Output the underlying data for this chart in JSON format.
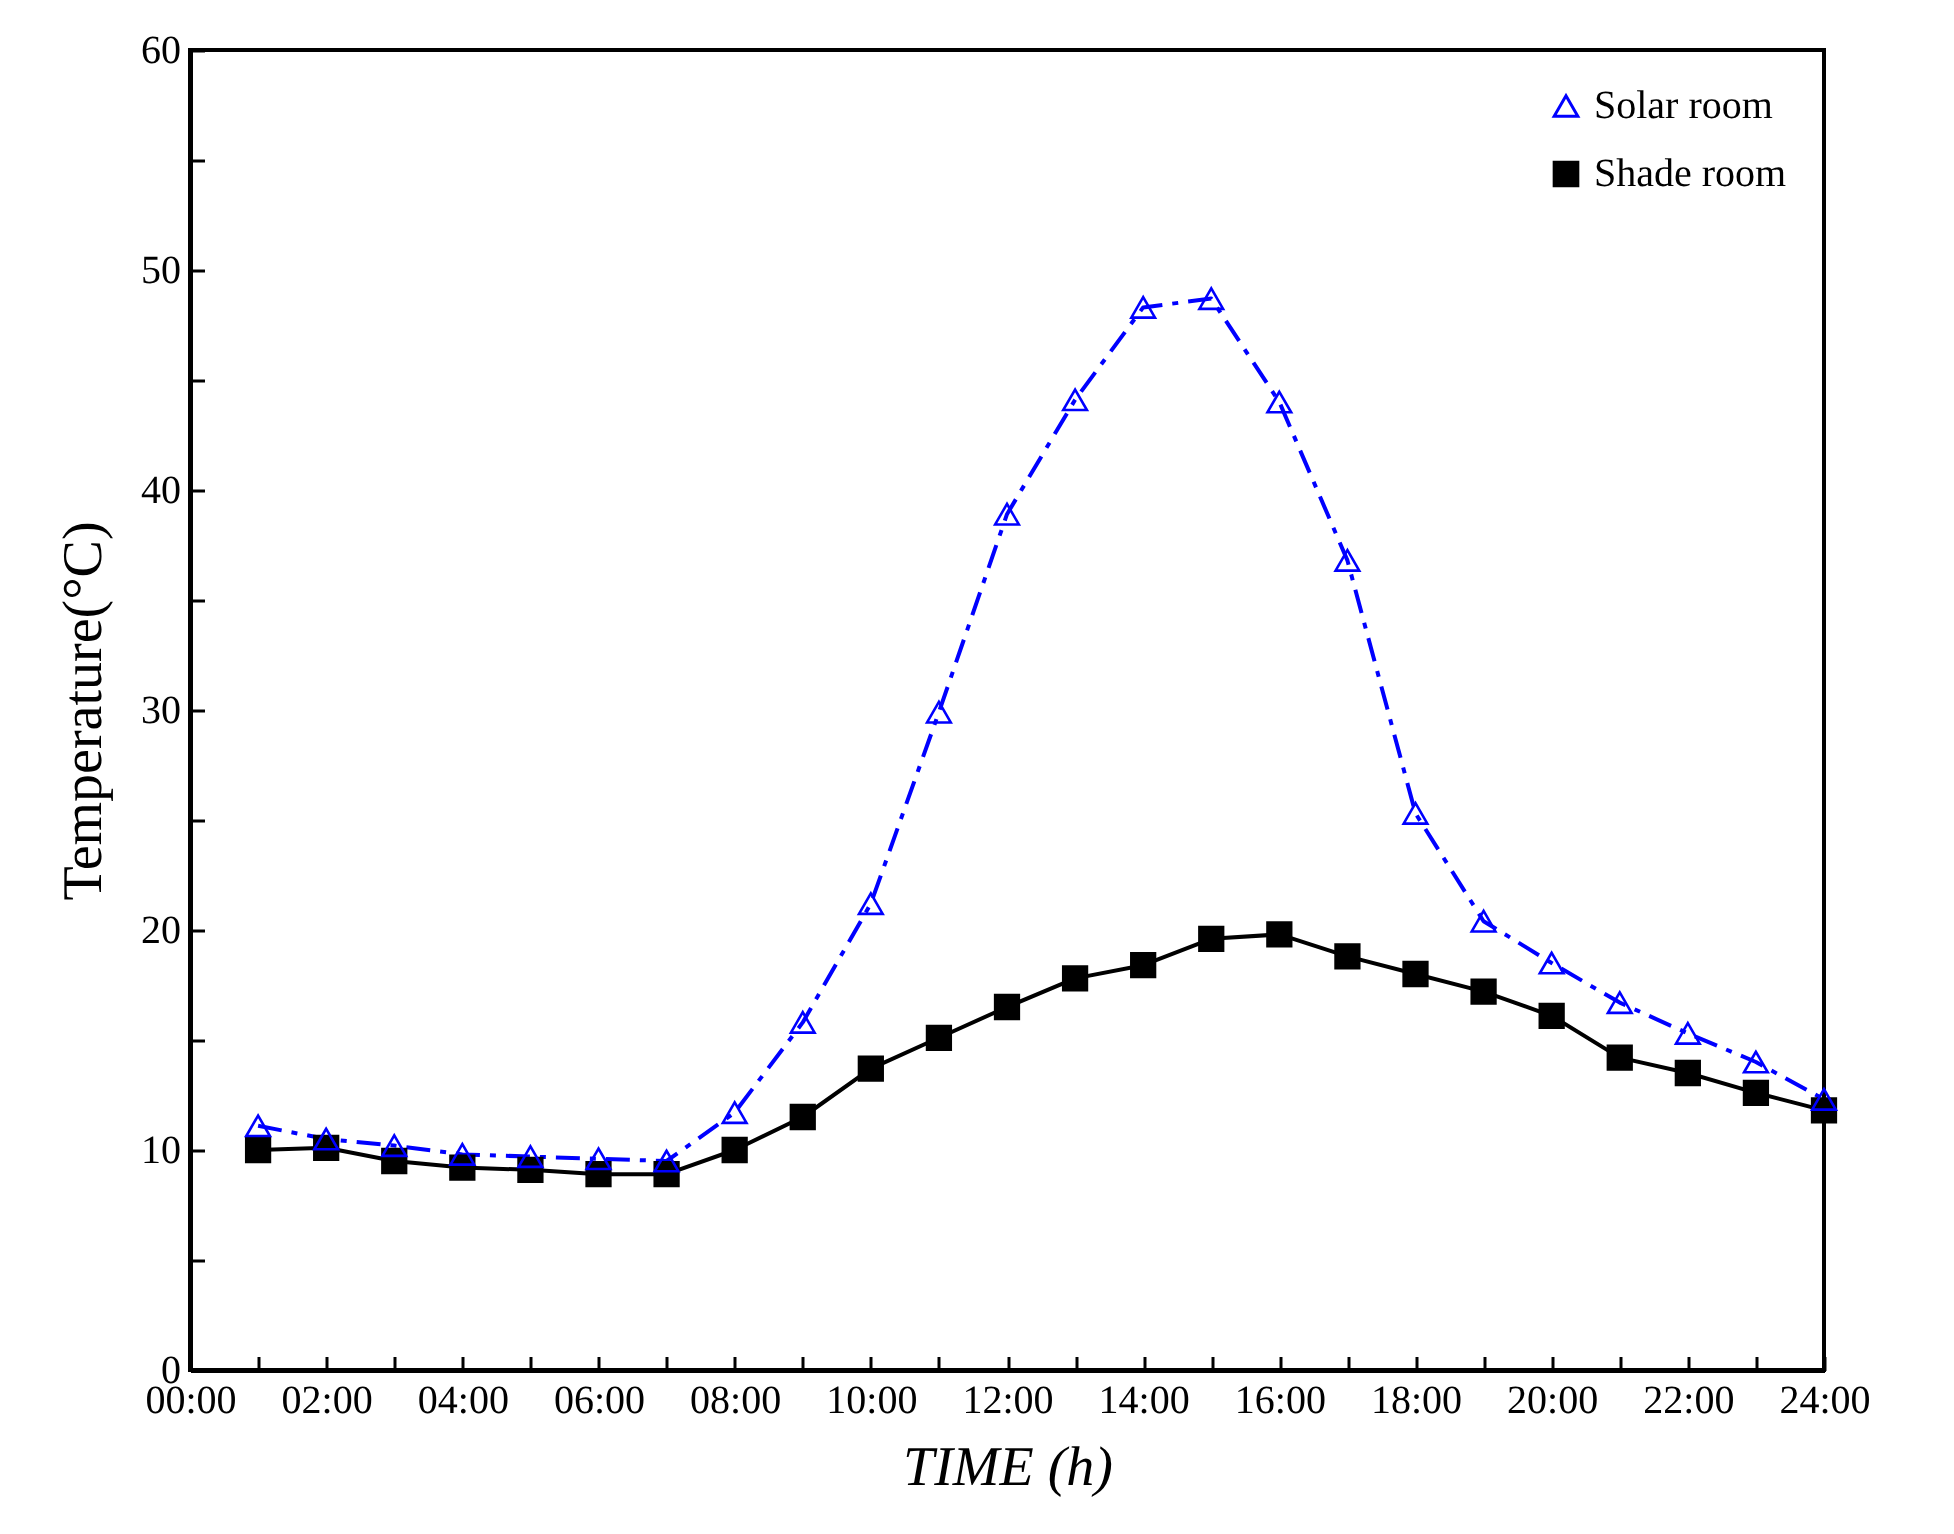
{
  "chart_data": {
    "type": "line",
    "xlabel": "TIME (h)",
    "ylabel": "Temperature(°C)",
    "x": [
      1,
      2,
      3,
      4,
      5,
      6,
      7,
      8,
      9,
      10,
      11,
      12,
      13,
      14,
      15,
      16,
      17,
      18,
      19,
      20,
      21,
      22,
      23,
      24
    ],
    "series": [
      {
        "name": "Solar room",
        "color": "#0000ff",
        "marker": "triangle",
        "line_style": "dashed",
        "values": [
          11.1,
          10.5,
          10.2,
          9.8,
          9.7,
          9.6,
          9.5,
          11.7,
          15.8,
          21.2,
          29.9,
          38.9,
          44.1,
          48.3,
          48.7,
          44.0,
          36.8,
          25.3,
          20.4,
          18.5,
          16.7,
          15.3,
          14.0,
          12.3
        ]
      },
      {
        "name": "Shade room",
        "color": "#000000",
        "marker": "square",
        "line_style": "solid",
        "values": [
          10.0,
          10.1,
          9.5,
          9.2,
          9.1,
          8.9,
          8.9,
          10.0,
          11.5,
          13.7,
          15.1,
          16.5,
          17.8,
          18.4,
          19.6,
          19.8,
          18.8,
          18.0,
          17.2,
          16.1,
          14.2,
          13.5,
          12.6,
          11.8
        ]
      }
    ],
    "xlim": [
      0,
      24
    ],
    "xticks": [
      {
        "value": 0,
        "label": "00:00"
      },
      {
        "value": 1,
        "label": null
      },
      {
        "value": 2,
        "label": "02:00"
      },
      {
        "value": 3,
        "label": null
      },
      {
        "value": 4,
        "label": "04:00"
      },
      {
        "value": 5,
        "label": null
      },
      {
        "value": 6,
        "label": "06:00"
      },
      {
        "value": 7,
        "label": null
      },
      {
        "value": 8,
        "label": "08:00"
      },
      {
        "value": 9,
        "label": null
      },
      {
        "value": 10,
        "label": "10:00"
      },
      {
        "value": 11,
        "label": null
      },
      {
        "value": 12,
        "label": "12:00"
      },
      {
        "value": 13,
        "label": null
      },
      {
        "value": 14,
        "label": "14:00"
      },
      {
        "value": 15,
        "label": null
      },
      {
        "value": 16,
        "label": "16:00"
      },
      {
        "value": 17,
        "label": null
      },
      {
        "value": 18,
        "label": "18:00"
      },
      {
        "value": 19,
        "label": null
      },
      {
        "value": 20,
        "label": "20:00"
      },
      {
        "value": 21,
        "label": null
      },
      {
        "value": 22,
        "label": "22:00"
      },
      {
        "value": 23,
        "label": null
      },
      {
        "value": 24,
        "label": "24:00"
      }
    ],
    "ylim": [
      0,
      60
    ],
    "yticks": [
      0,
      {
        "value": 5,
        "label": null
      },
      10,
      {
        "value": 15,
        "label": null
      },
      20,
      {
        "value": 25,
        "label": null
      },
      30,
      {
        "value": 35,
        "label": null
      },
      40,
      {
        "value": 45,
        "label": null
      },
      50,
      {
        "value": 55,
        "label": null
      },
      60
    ],
    "grid": false,
    "legend": "top right"
  }
}
